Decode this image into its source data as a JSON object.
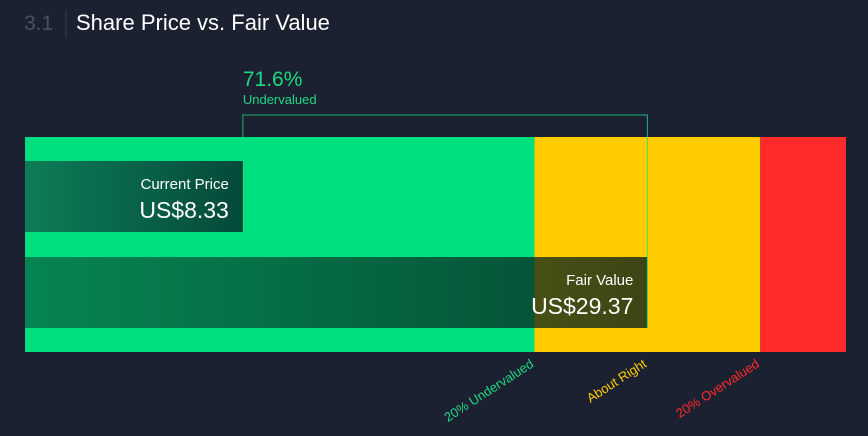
{
  "chart_data": {
    "type": "valuation",
    "section": "3.1",
    "title": "Share Price vs. Fair Value",
    "categories": [
      "Current Price",
      "Fair Value"
    ],
    "values": [
      8.33,
      29.37
    ],
    "value_labels": [
      "US$8.33",
      "US$29.37"
    ],
    "xlim": [
      -3,
      39.7
    ],
    "difference": {
      "value": 71.6,
      "label": "71.6%",
      "note": "Undervalued",
      "color": "#1ed882"
    },
    "zones": [
      {
        "from": -3,
        "to": 23.5,
        "color": "#00e080"
      },
      {
        "from": 23.5,
        "to": 35.24,
        "color": "#ffcc00"
      },
      {
        "from": 35.24,
        "to": 39.7,
        "color": "#ff2b2b"
      }
    ],
    "markers": [
      {
        "value": 23.5,
        "label": "20% Undervalued",
        "color": "#1ed882"
      },
      {
        "value": 29.37,
        "label": "About Right",
        "color": "#ffcc00"
      },
      {
        "value": 35.24,
        "label": "20% Overvalued",
        "color": "#ff2b2b"
      }
    ]
  }
}
